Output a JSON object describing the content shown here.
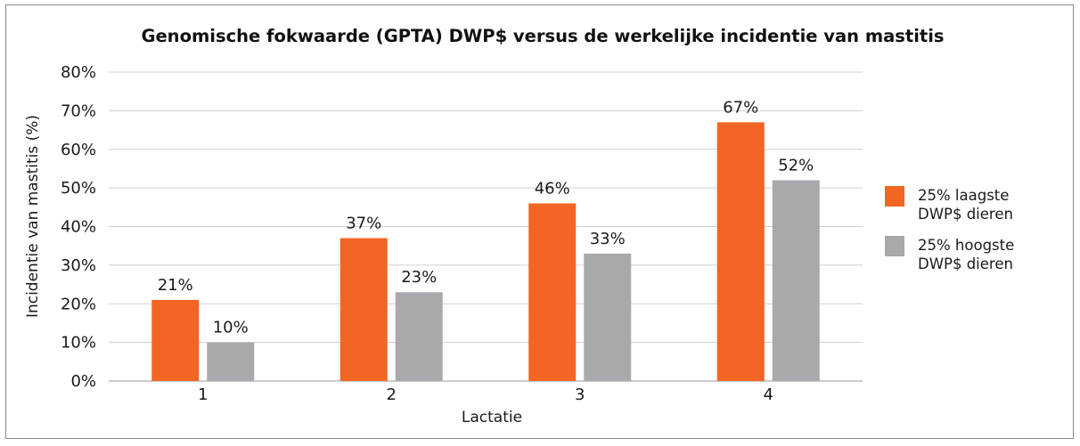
{
  "chart_data": {
    "type": "bar",
    "title": "Genomische fokwaarde (GPTA) DWP$ versus de werkelijke incidentie van mastitis",
    "xlabel": "Lactatie",
    "ylabel": "Incidentie van mastitis (%)",
    "categories": [
      "1",
      "2",
      "3",
      "4"
    ],
    "ylim": [
      0,
      80
    ],
    "yticks": [
      0,
      10,
      20,
      30,
      40,
      50,
      60,
      70,
      80
    ],
    "ytick_suffix": "%",
    "grid": true,
    "legend_position": "right",
    "series": [
      {
        "name": "25% laagste DWP$ dieren",
        "legend_lines": [
          "25% laagste",
          "DWP$ dieren"
        ],
        "color": "#F26522",
        "values": [
          21,
          37,
          46,
          67
        ],
        "labels": [
          "21%",
          "37%",
          "46%",
          "67%"
        ]
      },
      {
        "name": "25% hoogste DWP$ dieren",
        "legend_lines": [
          "25% hoogste",
          "DWP$ dieren"
        ],
        "color": "#A7A9AC",
        "values": [
          10,
          23,
          33,
          52
        ],
        "labels": [
          "10%",
          "23%",
          "33%",
          "52%"
        ]
      }
    ]
  }
}
